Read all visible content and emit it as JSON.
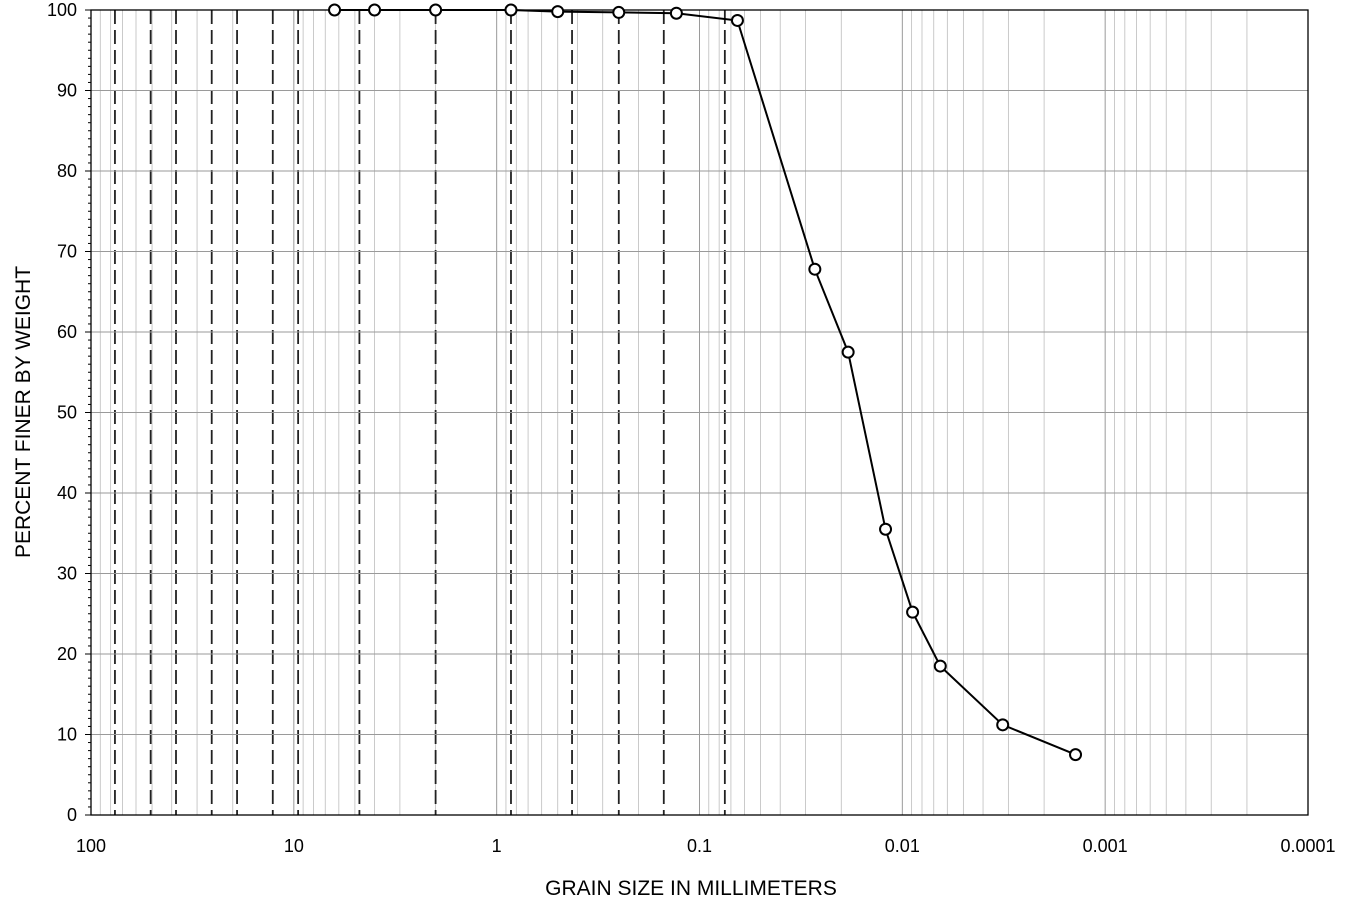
{
  "chart_data": {
    "type": "line",
    "xlabel": "GRAIN SIZE IN MILLIMETERS",
    "ylabel": "PERCENT FINER BY WEIGHT",
    "x_scale": "log",
    "x_reversed": true,
    "xlim": [
      100,
      0.0001
    ],
    "ylim": [
      0,
      100
    ],
    "grid": true,
    "x_ticks": [
      100,
      10,
      1,
      0.1,
      0.01,
      0.001,
      0.0001
    ],
    "x_tick_labels": [
      "100",
      "10",
      "1",
      "0.1",
      "0.01",
      "0.001",
      "0.0001"
    ],
    "y_ticks": [
      0,
      10,
      20,
      30,
      40,
      50,
      60,
      70,
      80,
      90,
      100
    ],
    "y_tick_labels": [
      "0",
      "10",
      "20",
      "30",
      "40",
      "50",
      "60",
      "70",
      "80",
      "90",
      "100"
    ],
    "sieve_sizes_mm": [
      76.2,
      50.8,
      38.1,
      25.4,
      19.05,
      12.7,
      9.525,
      4.75,
      2.0,
      0.85,
      0.425,
      0.25,
      0.15,
      0.075
    ],
    "series": [
      {
        "x": [
          6.3,
          4.0,
          2.0,
          0.85,
          0.5,
          0.25,
          0.13,
          0.065,
          0.027,
          0.0185,
          0.0121,
          0.0089,
          0.0065,
          0.0032,
          0.0014
        ],
        "y": [
          100,
          100,
          100,
          100,
          99.8,
          99.7,
          99.6,
          98.7,
          67.8,
          57.5,
          35.5,
          25.2,
          18.5,
          11.2,
          7.5
        ]
      }
    ]
  }
}
